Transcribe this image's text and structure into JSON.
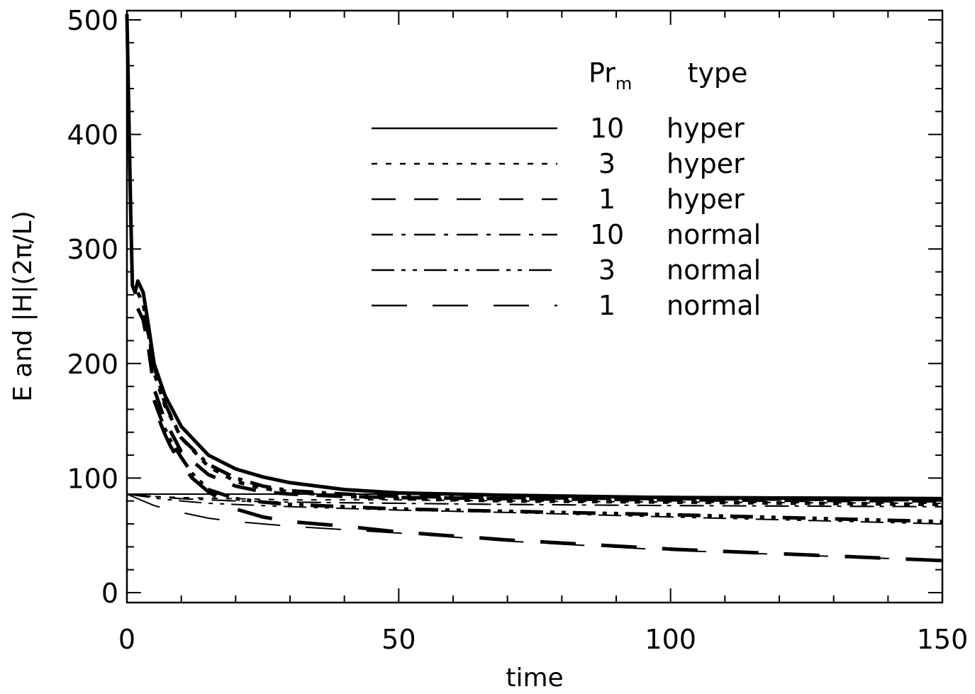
{
  "chart_data": {
    "type": "line",
    "title": "",
    "xlabel": "time",
    "ylabel": "E and |H|(2π/L)",
    "xlim": [
      0,
      150
    ],
    "ylim": [
      0,
      500
    ],
    "x_ticks": [
      0,
      50,
      100,
      150
    ],
    "y_ticks": [
      0,
      100,
      200,
      300,
      400,
      500
    ],
    "grid": false,
    "legend": {
      "placement": "top-right",
      "header_pr": "Pr",
      "header_pr_sub": "m",
      "header_type": "type",
      "entries": [
        {
          "pr": "10",
          "type": "hyper",
          "style": "solid"
        },
        {
          "pr": "3",
          "type": "hyper",
          "style": "dotted"
        },
        {
          "pr": "1",
          "type": "hyper",
          "style": "dashed"
        },
        {
          "pr": "10",
          "type": "normal",
          "style": "dash-dot"
        },
        {
          "pr": "3",
          "type": "normal",
          "style": "dash-dot-dot"
        },
        {
          "pr": "1",
          "type": "normal",
          "style": "long-dash"
        }
      ]
    },
    "series": [
      {
        "style": "solid",
        "kind": "energy",
        "x": [
          0,
          0.3,
          0.7,
          1,
          1.5,
          2,
          3,
          4,
          5,
          7,
          10,
          15,
          20,
          25,
          30,
          40,
          50,
          70,
          100,
          150
        ],
        "y": [
          505,
          430,
          330,
          268,
          262,
          272,
          262,
          232,
          200,
          172,
          145,
          120,
          108,
          101,
          96,
          90,
          87,
          85,
          83,
          82
        ]
      },
      {
        "style": "dotted",
        "kind": "energy",
        "x": [
          2,
          3,
          4,
          5,
          7,
          10,
          15,
          20,
          25,
          30,
          40,
          50,
          70,
          100,
          150
        ],
        "y": [
          262,
          252,
          225,
          192,
          163,
          135,
          110,
          97,
          91,
          88,
          84,
          82,
          80,
          79,
          77
        ]
      },
      {
        "style": "dashed",
        "kind": "energy",
        "x": [
          2,
          3,
          4,
          5,
          7,
          10,
          15,
          20,
          25,
          30,
          40,
          50,
          70,
          100,
          150
        ],
        "y": [
          248,
          238,
          212,
          178,
          150,
          123,
          103,
          93,
          88,
          86,
          84,
          83,
          82,
          81,
          80
        ]
      },
      {
        "style": "dash-dot",
        "kind": "energy",
        "x": [
          3,
          4,
          5,
          7,
          10,
          15,
          20,
          25,
          30,
          40,
          50,
          70,
          100,
          150
        ],
        "y": [
          242,
          225,
          198,
          165,
          135,
          112,
          100,
          93,
          89,
          86,
          84,
          83,
          82,
          81
        ]
      },
      {
        "style": "dash-dot-dot",
        "kind": "energy",
        "x": [
          5,
          6,
          7,
          8,
          10,
          12,
          15,
          20,
          25,
          30,
          40,
          50,
          70,
          100,
          150
        ],
        "y": [
          168,
          155,
          143,
          133,
          118,
          104,
          90,
          82,
          79,
          77,
          75,
          73,
          71,
          68,
          62
        ]
      },
      {
        "style": "long-dash",
        "kind": "energy",
        "x": [
          6,
          7,
          8,
          10,
          12,
          15,
          20,
          25,
          30,
          40,
          50,
          70,
          100,
          150
        ],
        "y": [
          150,
          138,
          128,
          112,
          100,
          88,
          73,
          66,
          62,
          58,
          53,
          46,
          38,
          28
        ]
      },
      {
        "style": "solid",
        "kind": "helicity",
        "x": [
          0,
          5,
          10,
          20,
          30,
          50,
          70,
          100,
          150
        ],
        "y": [
          86,
          86,
          86,
          86,
          86,
          86,
          85,
          84,
          83
        ]
      },
      {
        "style": "dotted",
        "kind": "helicity",
        "x": [
          0,
          5,
          10,
          20,
          30,
          50,
          70,
          100,
          150
        ],
        "y": [
          86,
          84,
          83,
          82,
          81,
          81,
          80,
          79,
          78
        ]
      },
      {
        "style": "dashed",
        "kind": "helicity",
        "x": [
          0,
          5,
          10,
          20,
          30,
          50,
          70,
          100,
          150
        ],
        "y": [
          86,
          84,
          82,
          80,
          79,
          78,
          77,
          76,
          75
        ]
      },
      {
        "style": "dash-dot",
        "kind": "helicity",
        "x": [
          0,
          5,
          10,
          15,
          20,
          30,
          50,
          70,
          100,
          150
        ],
        "y": [
          86,
          84,
          82,
          81,
          80,
          79,
          78,
          77,
          76,
          75
        ]
      },
      {
        "style": "dash-dot-dot",
        "kind": "helicity",
        "x": [
          0,
          3,
          6,
          10,
          15,
          20,
          30,
          50,
          70,
          100,
          150
        ],
        "y": [
          86,
          84,
          82,
          80,
          78,
          77,
          75,
          72,
          70,
          66,
          60
        ]
      },
      {
        "style": "long-dash",
        "kind": "helicity",
        "x": [
          0,
          2,
          5,
          8,
          10,
          15,
          20,
          30,
          50,
          70,
          100,
          150
        ],
        "y": [
          86,
          82,
          76,
          72,
          70,
          65,
          62,
          58,
          52,
          45,
          37,
          28
        ]
      }
    ]
  }
}
